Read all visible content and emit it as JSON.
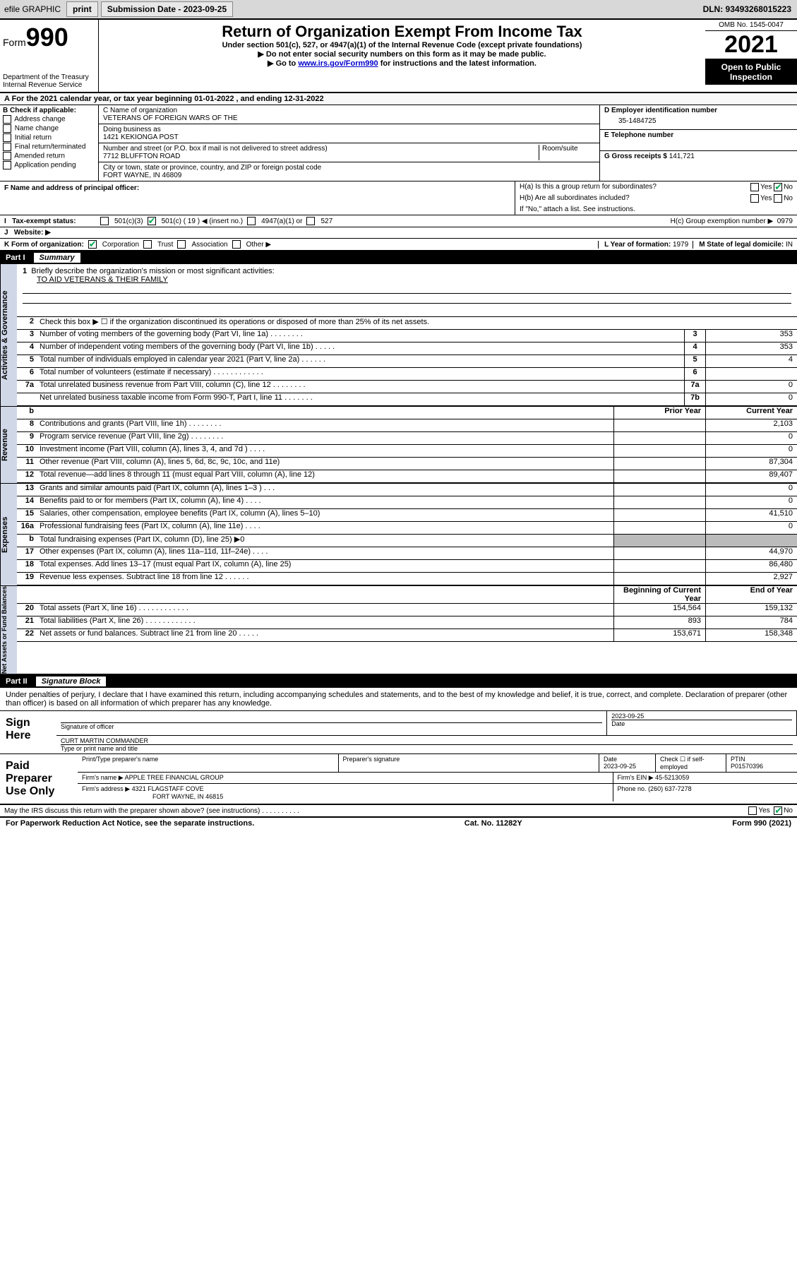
{
  "topbar": {
    "efile": "efile GRAPHIC",
    "print": "print",
    "subdate_lbl": "Submission Date - ",
    "subdate": "2023-09-25",
    "dln": "DLN: 93493268015223"
  },
  "header": {
    "form": "Form",
    "formno": "990",
    "dept": "Department of the Treasury",
    "irs": "Internal Revenue Service",
    "title": "Return of Organization Exempt From Income Tax",
    "subtitle": "Under section 501(c), 527, or 4947(a)(1) of the Internal Revenue Code (except private foundations)",
    "instr1": "▶ Do not enter social security numbers on this form as it may be made public.",
    "instr2a": "▶ Go to ",
    "instr2link": "www.irs.gov/Form990",
    "instr2b": " for instructions and the latest information.",
    "omb": "OMB No. 1545-0047",
    "year": "2021",
    "openpublic": "Open to Public Inspection"
  },
  "A": {
    "text": "A For the 2021 calendar year, or tax year beginning 01-01-2022    , and ending 12-31-2022"
  },
  "B": {
    "heading": "B Check if applicable:",
    "items": [
      "Address change",
      "Name change",
      "Initial return",
      "Final return/terminated",
      "Amended return",
      "Application pending"
    ]
  },
  "C": {
    "name_lbl": "C Name of organization",
    "name": "VETERANS OF FOREIGN WARS OF THE",
    "dba_lbl": "Doing business as",
    "dba": "1421 KEKIONGA POST",
    "street_lbl": "Number and street (or P.O. box if mail is not delivered to street address)",
    "room_lbl": "Room/suite",
    "street": "7712 BLUFFTON ROAD",
    "city_lbl": "City or town, state or province, country, and ZIP or foreign postal code",
    "city": "FORT WAYNE, IN  46809"
  },
  "D": {
    "lbl": "D Employer identification number",
    "val": "35-1484725"
  },
  "E": {
    "lbl": "E Telephone number",
    "val": ""
  },
  "G": {
    "lbl": "G Gross receipts $",
    "val": "141,721"
  },
  "F": {
    "lbl": "F  Name and address of principal officer:"
  },
  "H": {
    "a": "H(a)  Is this a group return for subordinates?",
    "b": "H(b)  Are all subordinates included?",
    "bnote": "If \"No,\" attach a list. See instructions.",
    "c": "H(c)  Group exemption number ▶",
    "cval": "0979",
    "yes": "Yes",
    "no": "No"
  },
  "I": {
    "lbl": "Tax-exempt status:",
    "o1": "501(c)(3)",
    "o2": "501(c) ( 19 ) ◀ (insert no.)",
    "o3": "4947(a)(1) or",
    "o4": "527"
  },
  "J": {
    "lbl": "Website: ▶"
  },
  "K": {
    "lbl": "K Form of organization:",
    "o1": "Corporation",
    "o2": "Trust",
    "o3": "Association",
    "o4": "Other ▶"
  },
  "L": {
    "lbl": "L Year of formation: ",
    "val": "1979"
  },
  "M": {
    "lbl": "M State of legal domicile: ",
    "val": "IN"
  },
  "part1": {
    "num": "Part I",
    "title": "Summary"
  },
  "s1": {
    "heading": "Activities & Governance",
    "l1": "Briefly describe the organization's mission or most significant activities:",
    "l1val": "TO AID VETERANS & THEIR FAMILY",
    "l2": "Check this box ▶ ☐  if the organization discontinued its operations or disposed of more than 25% of its net assets.",
    "rows": [
      {
        "n": "3",
        "d": "Number of voting members of the governing body (Part VI, line 1a)  .    .    .    .    .    .    .    .",
        "b": "3",
        "v": "353"
      },
      {
        "n": "4",
        "d": "Number of independent voting members of the governing body (Part VI, line 1b)   .    .    .    .    .",
        "b": "4",
        "v": "353"
      },
      {
        "n": "5",
        "d": "Total number of individuals employed in calendar year 2021 (Part V, line 2a)   .    .    .    .    .    .",
        "b": "5",
        "v": "4"
      },
      {
        "n": "6",
        "d": "Total number of volunteers (estimate if necessary)   .    .    .    .    .    .    .    .    .    .    .    .",
        "b": "6",
        "v": ""
      },
      {
        "n": "7a",
        "d": "Total unrelated business revenue from Part VIII, column (C), line 12   .    .    .    .    .    .    .    .",
        "b": "7a",
        "v": "0"
      },
      {
        "n": "",
        "d": "Net unrelated business taxable income from Form 990-T, Part I, line 11   .    .    .    .    .    .    .",
        "b": "7b",
        "v": "0"
      }
    ]
  },
  "colheads": {
    "b": "b",
    "prior": "Prior Year",
    "current": "Current Year"
  },
  "s2": {
    "heading": "Revenue",
    "rows": [
      {
        "n": "8",
        "d": "Contributions and grants (Part VIII, line 1h)   .    .    .    .    .    .    .    .",
        "p": "",
        "c": "2,103"
      },
      {
        "n": "9",
        "d": "Program service revenue (Part VIII, line 2g)   .    .    .    .    .    .    .    .",
        "p": "",
        "c": "0"
      },
      {
        "n": "10",
        "d": "Investment income (Part VIII, column (A), lines 3, 4, and 7d )   .    .    .    .",
        "p": "",
        "c": "0"
      },
      {
        "n": "11",
        "d": "Other revenue (Part VIII, column (A), lines 5, 6d, 8c, 9c, 10c, and 11e)",
        "p": "",
        "c": "87,304"
      },
      {
        "n": "12",
        "d": "Total revenue—add lines 8 through 11 (must equal Part VIII, column (A), line 12)",
        "p": "",
        "c": "89,407"
      }
    ]
  },
  "s3": {
    "heading": "Expenses",
    "rows": [
      {
        "n": "13",
        "d": "Grants and similar amounts paid (Part IX, column (A), lines 1–3 )   .    .    .",
        "p": "",
        "c": "0"
      },
      {
        "n": "14",
        "d": "Benefits paid to or for members (Part IX, column (A), line 4)   .    .    .    .",
        "p": "",
        "c": "0"
      },
      {
        "n": "15",
        "d": "Salaries, other compensation, employee benefits (Part IX, column (A), lines 5–10)",
        "p": "",
        "c": "41,510"
      },
      {
        "n": "16a",
        "d": "Professional fundraising fees (Part IX, column (A), line 11e)   .    .    .    .",
        "p": "",
        "c": "0"
      },
      {
        "n": "b",
        "d": "Total fundraising expenses (Part IX, column (D), line 25) ▶0",
        "p": "shade",
        "c": "shade"
      },
      {
        "n": "17",
        "d": "Other expenses (Part IX, column (A), lines 11a–11d, 11f–24e)   .    .    .    .",
        "p": "",
        "c": "44,970"
      },
      {
        "n": "18",
        "d": "Total expenses. Add lines 13–17 (must equal Part IX, column (A), line 25)",
        "p": "",
        "c": "86,480"
      },
      {
        "n": "19",
        "d": "Revenue less expenses. Subtract line 18 from line 12   .    .    .    .    .    .",
        "p": "",
        "c": "2,927"
      }
    ]
  },
  "s4": {
    "heading": "Net Assets or Fund Balances",
    "colheads": {
      "prior": "Beginning of Current Year",
      "current": "End of Year"
    },
    "rows": [
      {
        "n": "20",
        "d": "Total assets (Part X, line 16)   .    .    .    .    .    .    .    .    .    .    .    .",
        "p": "154,564",
        "c": "159,132"
      },
      {
        "n": "21",
        "d": "Total liabilities (Part X, line 26)   .    .    .    .    .    .    .    .    .    .    .    .",
        "p": "893",
        "c": "784"
      },
      {
        "n": "22",
        "d": "Net assets or fund balances. Subtract line 21 from line 20   .    .    .    .    .",
        "p": "153,671",
        "c": "158,348"
      }
    ]
  },
  "part2": {
    "num": "Part II",
    "title": "Signature Block"
  },
  "penalties": "Under penalties of perjury, I declare that I have examined this return, including accompanying schedules and statements, and to the best of my knowledge and belief, it is true, correct, and complete. Declaration of preparer (other than officer) is based on all information of which preparer has any knowledge.",
  "sign": {
    "lbl": "Sign Here",
    "sig_lbl": "Signature of officer",
    "date_lbl": "Date",
    "date": "2023-09-25",
    "name": "CURT MARTIN  COMMANDER",
    "name_lbl": "Type or print name and title"
  },
  "paid": {
    "lbl": "Paid Preparer Use Only",
    "col1": "Print/Type preparer's name",
    "col2": "Preparer's signature",
    "col3": "Date",
    "col3v": "2023-09-25",
    "col4": "Check ☐ if self-employed",
    "col5": "PTIN",
    "col5v": "P01570396",
    "firm_lbl": "Firm's name    ▶",
    "firm": "APPLE TREE FINANCIAL GROUP",
    "ein_lbl": "Firm's EIN ▶",
    "ein": "45-5213059",
    "addr_lbl": "Firm's address ▶",
    "addr1": "4321 FLAGSTAFF COVE",
    "addr2": "FORT WAYNE, IN  46815",
    "phone_lbl": "Phone no.",
    "phone": "(260) 637-7278"
  },
  "may": {
    "text": "May the IRS discuss this return with the preparer shown above? (see instructions)   .    .    .    .    .    .    .    .    .    .",
    "yes": "Yes",
    "no": "No"
  },
  "bottom": {
    "left": "For Paperwork Reduction Act Notice, see the separate instructions.",
    "center": "Cat. No. 11282Y",
    "right": "Form 990 (2021)"
  }
}
